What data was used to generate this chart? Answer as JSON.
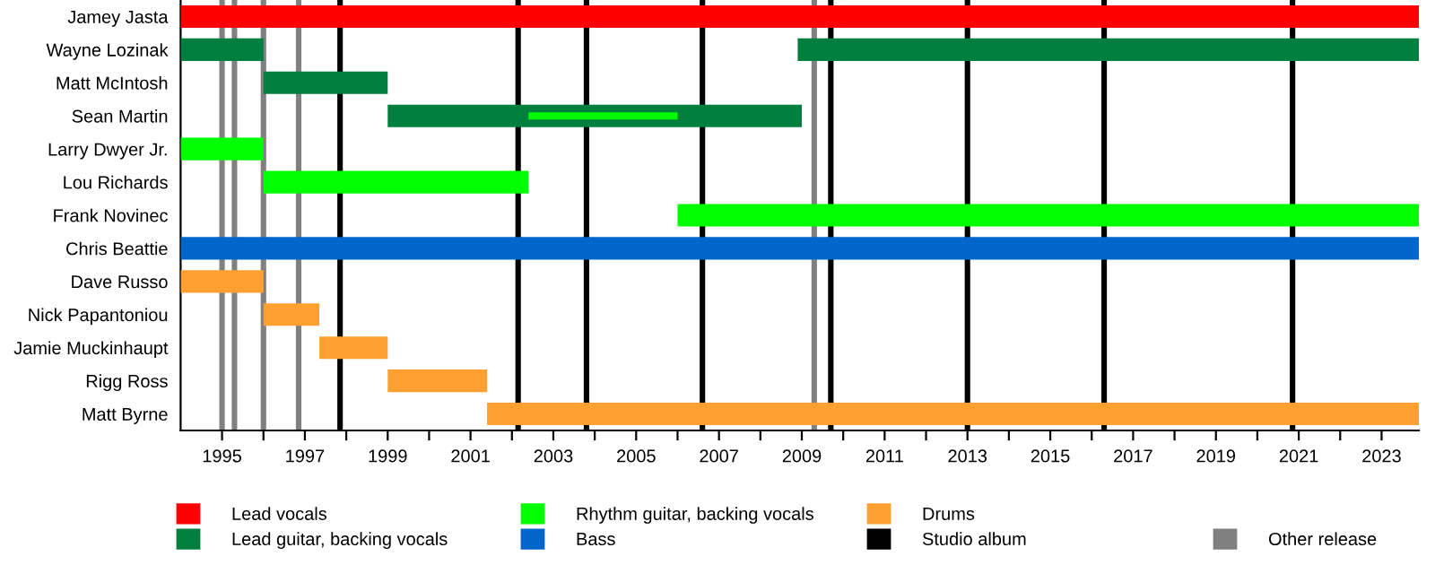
{
  "chart_data": {
    "type": "bar",
    "orientation": "horizontal",
    "categories": [
      "Jamey Jasta",
      "Wayne Lozinak",
      "Matt McIntosh",
      "Sean Martin",
      "Larry Dwyer Jr.",
      "Lou Richards",
      "Frank Novinec",
      "Chris Beattie",
      "Dave Russo",
      "Nick Papantoniou",
      "Jamie Muckinhaupt",
      "Rigg Ross",
      "Matt Byrne"
    ],
    "series": [
      {
        "name": "Lead vocals",
        "color": "#ff0000",
        "base": [
          1994,
          null,
          null,
          null,
          null,
          null,
          null,
          null,
          null,
          null,
          null,
          null,
          null
        ],
        "values": [
          29.9,
          null,
          null,
          null,
          null,
          null,
          null,
          null,
          null,
          null,
          null,
          null,
          null
        ]
      },
      {
        "name": "Lead guitar, backing vocals",
        "color": "#007f3f",
        "base": [
          null,
          1994,
          1996,
          1999,
          null,
          null,
          null,
          null,
          null,
          null,
          null,
          null,
          null
        ],
        "values": [
          null,
          2,
          3,
          10,
          null,
          null,
          null,
          null,
          null,
          null,
          null,
          null,
          null
        ]
      },
      {
        "color": "#007f3f",
        "base": [
          null,
          2008.9,
          null,
          null,
          null,
          null,
          null,
          null,
          null,
          null,
          null,
          null,
          null
        ],
        "values": [
          null,
          15,
          null,
          null,
          null,
          null,
          null,
          null,
          null,
          null,
          null,
          null,
          null
        ]
      },
      {
        "name": "Rhythm guitar, backing vocals",
        "color": "#00ff00",
        "base": [
          null,
          null,
          null,
          null,
          1994,
          1996,
          2006,
          null,
          null,
          null,
          null,
          null,
          null
        ],
        "values": [
          null,
          null,
          null,
          null,
          2,
          6.4,
          17.9,
          null,
          null,
          null,
          null,
          null,
          null
        ]
      },
      {
        "color": "#00ff00",
        "base": [
          null,
          null,
          null,
          2002.4,
          null,
          null,
          null,
          null,
          null,
          null,
          null,
          null,
          null
        ],
        "values": [
          null,
          null,
          null,
          3.6,
          null,
          null,
          null,
          null,
          null,
          null,
          null,
          null,
          null
        ]
      },
      {
        "name": "Bass",
        "color": "#0066cc",
        "base": [
          null,
          null,
          null,
          null,
          null,
          null,
          null,
          1994,
          null,
          null,
          null,
          null,
          null
        ],
        "values": [
          null,
          null,
          null,
          null,
          null,
          null,
          null,
          29.9,
          null,
          null,
          null,
          null,
          null
        ]
      },
      {
        "name": "Drums",
        "color": "#ffa030",
        "base": [
          null,
          null,
          null,
          null,
          null,
          null,
          null,
          null,
          1994,
          1996,
          1997.35,
          1999,
          2001.4
        ],
        "values": [
          null,
          null,
          null,
          null,
          null,
          null,
          null,
          null,
          2,
          1.35,
          1.65,
          2.4,
          22.5
        ]
      }
    ],
    "xlim": [
      1994,
      2023.9
    ],
    "xticks": [
      {
        "value": 1995,
        "label": "1995"
      },
      {
        "value": 1996,
        "label": null
      },
      {
        "value": 1997,
        "label": "1997"
      },
      {
        "value": 1998,
        "label": null
      },
      {
        "value": 1999,
        "label": "1999"
      },
      {
        "value": 2000,
        "label": null
      },
      {
        "value": 2001,
        "label": "2001"
      },
      {
        "value": 2002,
        "label": null
      },
      {
        "value": 2003,
        "label": "2003"
      },
      {
        "value": 2004,
        "label": null
      },
      {
        "value": 2005,
        "label": "2005"
      },
      {
        "value": 2006,
        "label": null
      },
      {
        "value": 2007,
        "label": "2007"
      },
      {
        "value": 2008,
        "label": null
      },
      {
        "value": 2009,
        "label": "2009"
      },
      {
        "value": 2010,
        "label": null
      },
      {
        "value": 2011,
        "label": "2011"
      },
      {
        "value": 2012,
        "label": null
      },
      {
        "value": 2013,
        "label": "2013"
      },
      {
        "value": 2014,
        "label": null
      },
      {
        "value": 2015,
        "label": "2015"
      },
      {
        "value": 2016,
        "label": null
      },
      {
        "value": 2017,
        "label": "2017"
      },
      {
        "value": 2018,
        "label": null
      },
      {
        "value": 2019,
        "label": "2019"
      },
      {
        "value": 2020,
        "label": null
      },
      {
        "value": 2021,
        "label": "2021"
      },
      {
        "value": 2022,
        "label": null
      },
      {
        "value": 2023,
        "label": "2023"
      }
    ],
    "ref_lines": [
      {
        "axis": "x",
        "value": 1997.85,
        "label": "Studio album",
        "color": "#000000"
      },
      {
        "axis": "x",
        "value": 2002.15,
        "color": "#000000"
      },
      {
        "axis": "x",
        "value": 2003.8,
        "color": "#000000"
      },
      {
        "axis": "x",
        "value": 2006.6,
        "color": "#000000"
      },
      {
        "axis": "x",
        "value": 2009.7,
        "color": "#000000"
      },
      {
        "axis": "x",
        "value": 2013.0,
        "color": "#000000"
      },
      {
        "axis": "x",
        "value": 2016.3,
        "color": "#000000"
      },
      {
        "axis": "x",
        "value": 2020.85,
        "color": "#000000"
      },
      {
        "axis": "x",
        "value": 1995.0,
        "label": "Other release",
        "color": "#808080"
      },
      {
        "axis": "x",
        "value": 1995.3,
        "color": "#808080"
      },
      {
        "axis": "x",
        "value": 1996.0,
        "color": "#808080"
      },
      {
        "axis": "x",
        "value": 1996.85,
        "color": "#808080"
      },
      {
        "axis": "x",
        "value": 2009.3,
        "color": "#808080"
      }
    ],
    "grid": false,
    "legend": "bottom"
  }
}
